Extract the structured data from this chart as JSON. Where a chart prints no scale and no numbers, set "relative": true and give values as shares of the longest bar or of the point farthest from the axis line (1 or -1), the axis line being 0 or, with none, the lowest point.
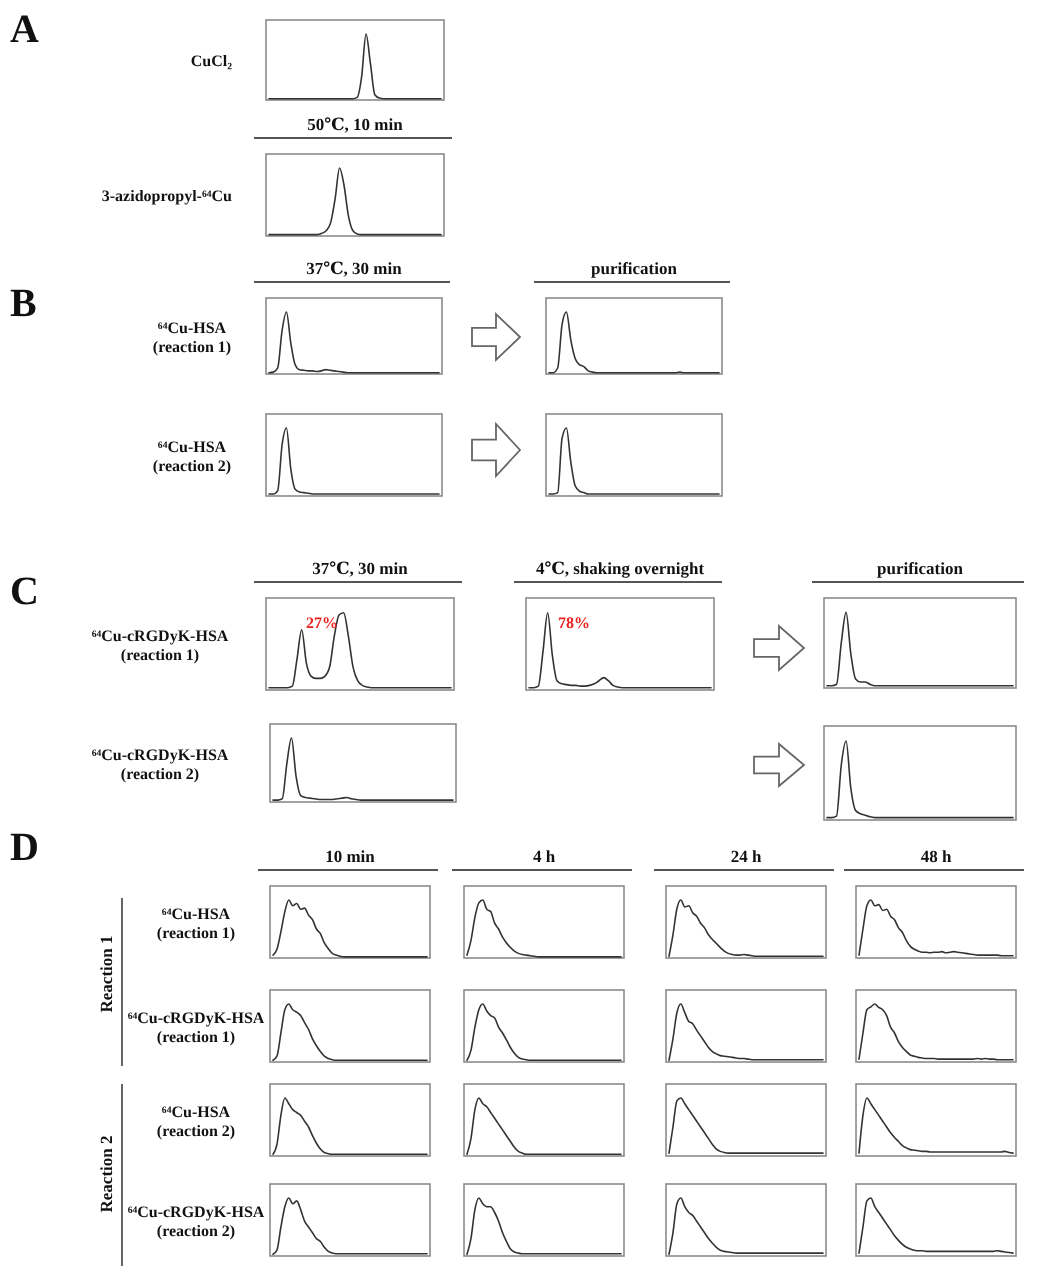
{
  "chart_data": [
    {
      "type": "line",
      "relative": true,
      "ylabel": "CuCl₂",
      "annotations": [
        "A"
      ],
      "color": "#333333",
      "categories": [
        null,
        null,
        null,
        null,
        null,
        null,
        null,
        null,
        null,
        null,
        null,
        null,
        null,
        null,
        null,
        null,
        null,
        null,
        null,
        null,
        null,
        null,
        null,
        null,
        null,
        null,
        null,
        null,
        null,
        null,
        null,
        null,
        null,
        null,
        null,
        null,
        null,
        null,
        null,
        null
      ],
      "values": [
        0.02,
        0.02,
        0.02,
        0.02,
        0.02,
        0.02,
        0.02,
        0.02,
        0.02,
        0.02,
        0.02,
        0.02,
        0.02,
        0.02,
        0.02,
        0.02,
        0.02,
        0.02,
        0.02,
        0.02,
        0.04,
        0.35,
        1,
        0.55,
        0.08,
        0.03,
        0.02,
        0.02,
        0.02,
        0.02,
        0.02,
        0.02,
        0.02,
        0.02,
        0.02,
        0.02,
        0.02,
        0.02,
        0.02,
        0.02
      ]
    },
    {
      "type": "line",
      "relative": true,
      "title": "50℃, 10 min",
      "ylabel": "3-azidopropyl-⁶⁴Cu",
      "color": "#333333",
      "categories": [
        null,
        null,
        null,
        null,
        null,
        null,
        null,
        null,
        null,
        null,
        null,
        null,
        null,
        null,
        null,
        null,
        null,
        null,
        null,
        null,
        null,
        null,
        null,
        null,
        null,
        null,
        null,
        null,
        null,
        null,
        null,
        null,
        null,
        null,
        null,
        null,
        null,
        null,
        null,
        null
      ],
      "values": [
        0.02,
        0.02,
        0.02,
        0.02,
        0.02,
        0.02,
        0.02,
        0.02,
        0.02,
        0.02,
        0.02,
        0.02,
        0.04,
        0.08,
        0.2,
        0.55,
        1,
        0.75,
        0.3,
        0.08,
        0.03,
        0.02,
        0.02,
        0.02,
        0.02,
        0.02,
        0.02,
        0.02,
        0.02,
        0.02,
        0.02,
        0.02,
        0.02,
        0.02,
        0.02,
        0.02,
        0.02,
        0.02,
        0.02,
        0.02
      ]
    },
    {
      "type": "line",
      "relative": true,
      "title": "37℃, 30 min",
      "ylabel": "⁶⁴Cu-HSA\n(reaction 1)",
      "annotations": [
        "B"
      ],
      "color": "#333333",
      "categories": [
        null,
        null,
        null,
        null,
        null,
        null,
        null,
        null,
        null,
        null,
        null,
        null,
        null,
        null,
        null,
        null,
        null,
        null,
        null,
        null,
        null,
        null,
        null,
        null,
        null,
        null,
        null,
        null,
        null,
        null,
        null,
        null,
        null,
        null,
        null,
        null,
        null,
        null,
        null,
        null
      ],
      "values": [
        0.02,
        0.03,
        0.1,
        0.7,
        1,
        0.5,
        0.15,
        0.07,
        0.06,
        0.05,
        0.05,
        0.04,
        0.05,
        0.07,
        0.06,
        0.05,
        0.04,
        0.03,
        0.02,
        0.02,
        0.02,
        0.02,
        0.02,
        0.02,
        0.02,
        0.02,
        0.02,
        0.02,
        0.02,
        0.02,
        0.02,
        0.02,
        0.02,
        0.02,
        0.02,
        0.02,
        0.02,
        0.02,
        0.02,
        0.02
      ]
    },
    {
      "type": "line",
      "relative": true,
      "title": "purification",
      "color": "#333333",
      "categories": [
        null,
        null,
        null,
        null,
        null,
        null,
        null,
        null,
        null,
        null,
        null,
        null,
        null,
        null,
        null,
        null,
        null,
        null,
        null,
        null,
        null,
        null,
        null,
        null,
        null,
        null,
        null,
        null,
        null,
        null,
        null,
        null,
        null,
        null,
        null,
        null,
        null,
        null,
        null,
        null
      ],
      "values": [
        0.02,
        0.02,
        0.1,
        0.8,
        1,
        0.55,
        0.25,
        0.15,
        0.12,
        0.05,
        0.03,
        0.02,
        0.02,
        0.02,
        0.02,
        0.02,
        0.02,
        0.02,
        0.02,
        0.02,
        0.02,
        0.02,
        0.02,
        0.02,
        0.02,
        0.02,
        0.02,
        0.02,
        0.02,
        0.02,
        0.03,
        0.02,
        0.02,
        0.02,
        0.02,
        0.02,
        0.02,
        0.02,
        0.02,
        0.02
      ]
    },
    {
      "type": "line",
      "relative": true,
      "ylabel": "⁶⁴Cu-HSA\n(reaction 2)",
      "color": "#333333",
      "categories": [
        null,
        null,
        null,
        null,
        null,
        null,
        null,
        null,
        null,
        null,
        null,
        null,
        null,
        null,
        null,
        null,
        null,
        null,
        null,
        null,
        null,
        null,
        null,
        null,
        null,
        null,
        null,
        null,
        null,
        null,
        null,
        null,
        null,
        null,
        null,
        null,
        null,
        null,
        null,
        null
      ],
      "values": [
        0.03,
        0.03,
        0.08,
        0.75,
        1,
        0.4,
        0.1,
        0.06,
        0.05,
        0.04,
        0.03,
        0.03,
        0.03,
        0.03,
        0.03,
        0.03,
        0.03,
        0.03,
        0.03,
        0.03,
        0.03,
        0.03,
        0.03,
        0.03,
        0.03,
        0.03,
        0.03,
        0.03,
        0.03,
        0.03,
        0.03,
        0.03,
        0.03,
        0.03,
        0.03,
        0.03,
        0.03,
        0.03,
        0.03,
        0.03
      ]
    },
    {
      "type": "line",
      "relative": true,
      "color": "#333333",
      "categories": [
        null,
        null,
        null,
        null,
        null,
        null,
        null,
        null,
        null,
        null,
        null,
        null,
        null,
        null,
        null,
        null,
        null,
        null,
        null,
        null,
        null,
        null,
        null,
        null,
        null,
        null,
        null,
        null,
        null,
        null,
        null,
        null,
        null,
        null,
        null,
        null,
        null,
        null,
        null,
        null
      ],
      "values": [
        0.03,
        0.03,
        0.05,
        0.85,
        1,
        0.5,
        0.15,
        0.07,
        0.05,
        0.03,
        0.03,
        0.03,
        0.03,
        0.03,
        0.03,
        0.03,
        0.03,
        0.03,
        0.03,
        0.03,
        0.03,
        0.03,
        0.03,
        0.03,
        0.03,
        0.03,
        0.03,
        0.03,
        0.03,
        0.03,
        0.03,
        0.03,
        0.03,
        0.03,
        0.03,
        0.03,
        0.03,
        0.03,
        0.03,
        0.03
      ]
    },
    {
      "type": "line",
      "relative": true,
      "title": "37℃, 30 min",
      "ylabel": "⁶⁴Cu-cRGDyK-HSA\n(reaction 1)",
      "annotations": [
        "C",
        "27%"
      ],
      "color": "#333333",
      "categories": [
        null,
        null,
        null,
        null,
        null,
        null,
        null,
        null,
        null,
        null,
        null,
        null,
        null,
        null,
        null,
        null,
        null,
        null,
        null,
        null,
        null,
        null,
        null,
        null,
        null,
        null,
        null,
        null,
        null,
        null,
        null,
        null,
        null,
        null,
        null,
        null,
        null,
        null,
        null,
        null
      ],
      "values": [
        0.03,
        0.03,
        0.03,
        0.03,
        0.03,
        0.05,
        0.4,
        0.78,
        0.35,
        0.18,
        0.15,
        0.15,
        0.18,
        0.3,
        0.7,
        0.97,
        1,
        0.7,
        0.3,
        0.12,
        0.06,
        0.04,
        0.03,
        0.03,
        0.03,
        0.03,
        0.03,
        0.03,
        0.03,
        0.03,
        0.03,
        0.03,
        0.03,
        0.03,
        0.03,
        0.03,
        0.03,
        0.03,
        0.03,
        0.03
      ]
    },
    {
      "type": "line",
      "relative": true,
      "title": "4℃, shaking overnight",
      "annotations": [
        "78%"
      ],
      "color": "#333333",
      "categories": [
        null,
        null,
        null,
        null,
        null,
        null,
        null,
        null,
        null,
        null,
        null,
        null,
        null,
        null,
        null,
        null,
        null,
        null,
        null,
        null,
        null,
        null,
        null,
        null,
        null,
        null,
        null,
        null,
        null,
        null,
        null,
        null,
        null,
        null,
        null,
        null,
        null,
        null,
        null,
        null
      ],
      "values": [
        0.03,
        0.03,
        0.05,
        0.5,
        1,
        0.45,
        0.12,
        0.08,
        0.07,
        0.06,
        0.06,
        0.05,
        0.05,
        0.06,
        0.08,
        0.12,
        0.16,
        0.12,
        0.06,
        0.04,
        0.03,
        0.03,
        0.03,
        0.03,
        0.03,
        0.03,
        0.03,
        0.03,
        0.03,
        0.03,
        0.03,
        0.03,
        0.03,
        0.03,
        0.03,
        0.03,
        0.03,
        0.03,
        0.03,
        0.03
      ]
    },
    {
      "type": "line",
      "relative": true,
      "title": "purification",
      "color": "#333333",
      "categories": [
        null,
        null,
        null,
        null,
        null,
        null,
        null,
        null,
        null,
        null,
        null,
        null,
        null,
        null,
        null,
        null,
        null,
        null,
        null,
        null,
        null,
        null,
        null,
        null,
        null,
        null,
        null,
        null,
        null,
        null,
        null,
        null,
        null,
        null,
        null,
        null,
        null,
        null,
        null,
        null
      ],
      "values": [
        0.03,
        0.03,
        0.05,
        0.6,
        1,
        0.45,
        0.12,
        0.08,
        0.08,
        0.05,
        0.03,
        0.03,
        0.03,
        0.03,
        0.03,
        0.03,
        0.03,
        0.03,
        0.03,
        0.03,
        0.03,
        0.03,
        0.03,
        0.03,
        0.03,
        0.03,
        0.03,
        0.03,
        0.03,
        0.03,
        0.03,
        0.03,
        0.03,
        0.03,
        0.03,
        0.03,
        0.03,
        0.03,
        0.03,
        0.03
      ]
    },
    {
      "type": "line",
      "relative": true,
      "ylabel": "⁶⁴Cu-cRGDyK-HSA\n(reaction 2)",
      "color": "#333333",
      "categories": [
        null,
        null,
        null,
        null,
        null,
        null,
        null,
        null,
        null,
        null,
        null,
        null,
        null,
        null,
        null,
        null,
        null,
        null,
        null,
        null,
        null,
        null,
        null,
        null,
        null,
        null,
        null,
        null,
        null,
        null,
        null,
        null,
        null,
        null,
        null,
        null,
        null,
        null,
        null,
        null
      ],
      "values": [
        0.03,
        0.03,
        0.05,
        0.6,
        1,
        0.4,
        0.1,
        0.07,
        0.06,
        0.05,
        0.04,
        0.04,
        0.04,
        0.04,
        0.05,
        0.06,
        0.07,
        0.05,
        0.04,
        0.03,
        0.03,
        0.03,
        0.03,
        0.03,
        0.03,
        0.03,
        0.03,
        0.03,
        0.03,
        0.03,
        0.03,
        0.03,
        0.03,
        0.03,
        0.03,
        0.03,
        0.03,
        0.03,
        0.03,
        0.03
      ]
    },
    {
      "type": "line",
      "relative": true,
      "color": "#333333",
      "categories": [
        null,
        null,
        null,
        null,
        null,
        null,
        null,
        null,
        null,
        null,
        null,
        null,
        null,
        null,
        null,
        null,
        null,
        null,
        null,
        null,
        null,
        null,
        null,
        null,
        null,
        null,
        null,
        null,
        null,
        null,
        null,
        null,
        null,
        null,
        null,
        null,
        null,
        null,
        null,
        null
      ],
      "values": [
        0.03,
        0.03,
        0.05,
        0.7,
        1,
        0.4,
        0.12,
        0.08,
        0.06,
        0.04,
        0.03,
        0.03,
        0.03,
        0.03,
        0.03,
        0.03,
        0.03,
        0.03,
        0.03,
        0.03,
        0.03,
        0.03,
        0.03,
        0.03,
        0.03,
        0.03,
        0.03,
        0.03,
        0.03,
        0.03,
        0.03,
        0.03,
        0.03,
        0.03,
        0.03,
        0.03,
        0.03,
        0.03,
        0.03,
        0.03
      ]
    },
    {
      "type": "line",
      "relative": true,
      "title": "10 min",
      "ylabel": "⁶⁴Cu-HSA\n(reaction 1)",
      "annotations": [
        "D",
        "Reaction 1"
      ],
      "color": "#333333",
      "categories": [
        null,
        null,
        null,
        null,
        null,
        null,
        null,
        null,
        null,
        null,
        null,
        null,
        null,
        null,
        null,
        null,
        null,
        null,
        null,
        null,
        null,
        null,
        null,
        null,
        null,
        null,
        null,
        null,
        null,
        null,
        null,
        null,
        null,
        null,
        null,
        null,
        null,
        null,
        null,
        null
      ],
      "values": [
        0.05,
        0.15,
        0.45,
        0.8,
        1,
        0.9,
        0.94,
        0.84,
        0.86,
        0.74,
        0.66,
        0.5,
        0.42,
        0.26,
        0.16,
        0.08,
        0.05,
        0.03,
        0.02,
        0.02,
        0.02,
        0.02,
        0.02,
        0.02,
        0.02,
        0.02,
        0.02,
        0.02,
        0.02,
        0.02,
        0.02,
        0.02,
        0.02,
        0.02,
        0.02,
        0.02,
        0.02,
        0.02,
        0.02,
        0.02
      ]
    },
    {
      "type": "line",
      "relative": true,
      "title": "4 h",
      "color": "#333333",
      "categories": [
        null,
        null,
        null,
        null,
        null,
        null,
        null,
        null,
        null,
        null,
        null,
        null,
        null,
        null,
        null,
        null,
        null,
        null,
        null,
        null,
        null,
        null,
        null,
        null,
        null,
        null,
        null,
        null,
        null,
        null,
        null,
        null,
        null,
        null,
        null,
        null,
        null,
        null,
        null,
        null
      ],
      "values": [
        0.05,
        0.3,
        0.7,
        0.95,
        1,
        0.84,
        0.8,
        0.6,
        0.5,
        0.36,
        0.26,
        0.18,
        0.12,
        0.08,
        0.06,
        0.05,
        0.04,
        0.03,
        0.02,
        0.02,
        0.02,
        0.02,
        0.02,
        0.02,
        0.02,
        0.02,
        0.02,
        0.02,
        0.02,
        0.02,
        0.02,
        0.02,
        0.02,
        0.02,
        0.02,
        0.02,
        0.02,
        0.02,
        0.02,
        0.02
      ]
    },
    {
      "type": "line",
      "relative": true,
      "title": "24 h",
      "color": "#333333",
      "categories": [
        null,
        null,
        null,
        null,
        null,
        null,
        null,
        null,
        null,
        null,
        null,
        null,
        null,
        null,
        null,
        null,
        null,
        null,
        null,
        null,
        null,
        null,
        null,
        null,
        null,
        null,
        null,
        null,
        null,
        null,
        null,
        null,
        null,
        null,
        null,
        null,
        null,
        null,
        null,
        null
      ],
      "values": [
        0.03,
        0.4,
        0.85,
        1,
        0.88,
        0.9,
        0.78,
        0.72,
        0.6,
        0.52,
        0.4,
        0.32,
        0.25,
        0.18,
        0.12,
        0.08,
        0.06,
        0.05,
        0.05,
        0.06,
        0.05,
        0.04,
        0.03,
        0.03,
        0.03,
        0.03,
        0.03,
        0.03,
        0.03,
        0.03,
        0.03,
        0.03,
        0.03,
        0.03,
        0.03,
        0.03,
        0.03,
        0.03,
        0.03,
        0.03
      ]
    },
    {
      "type": "line",
      "relative": true,
      "title": "48 h",
      "color": "#333333",
      "categories": [
        null,
        null,
        null,
        null,
        null,
        null,
        null,
        null,
        null,
        null,
        null,
        null,
        null,
        null,
        null,
        null,
        null,
        null,
        null,
        null,
        null,
        null,
        null,
        null,
        null,
        null,
        null,
        null,
        null,
        null,
        null,
        null,
        null,
        null,
        null,
        null,
        null,
        null,
        null,
        null
      ],
      "values": [
        0.05,
        0.5,
        0.9,
        1,
        0.9,
        0.92,
        0.82,
        0.84,
        0.72,
        0.66,
        0.52,
        0.44,
        0.3,
        0.2,
        0.15,
        0.12,
        0.1,
        0.1,
        0.09,
        0.1,
        0.1,
        0.11,
        0.09,
        0.1,
        0.11,
        0.1,
        0.09,
        0.08,
        0.07,
        0.06,
        0.05,
        0.05,
        0.05,
        0.05,
        0.05,
        0.05,
        0.04,
        0.04,
        0.04,
        0.04
      ]
    },
    {
      "type": "line",
      "relative": true,
      "ylabel": "⁶⁴Cu-cRGDyK-HSA\n(reaction 1)",
      "color": "#333333",
      "categories": [
        null,
        null,
        null,
        null,
        null,
        null,
        null,
        null,
        null,
        null,
        null,
        null,
        null,
        null,
        null,
        null,
        null,
        null,
        null,
        null,
        null,
        null,
        null,
        null,
        null,
        null,
        null,
        null,
        null,
        null,
        null,
        null,
        null,
        null,
        null,
        null,
        null,
        null,
        null,
        null
      ],
      "values": [
        0.03,
        0.1,
        0.5,
        0.9,
        1,
        0.9,
        0.86,
        0.8,
        0.68,
        0.56,
        0.4,
        0.28,
        0.18,
        0.1,
        0.06,
        0.04,
        0.03,
        0.03,
        0.03,
        0.03,
        0.03,
        0.03,
        0.03,
        0.03,
        0.03,
        0.03,
        0.03,
        0.03,
        0.03,
        0.03,
        0.03,
        0.03,
        0.03,
        0.03,
        0.03,
        0.03,
        0.03,
        0.03,
        0.03,
        0.03
      ]
    },
    {
      "type": "line",
      "relative": true,
      "color": "#333333",
      "categories": [
        null,
        null,
        null,
        null,
        null,
        null,
        null,
        null,
        null,
        null,
        null,
        null,
        null,
        null,
        null,
        null,
        null,
        null,
        null,
        null,
        null,
        null,
        null,
        null,
        null,
        null,
        null,
        null,
        null,
        null,
        null,
        null,
        null,
        null,
        null,
        null,
        null,
        null,
        null,
        null
      ],
      "values": [
        0.03,
        0.2,
        0.6,
        0.9,
        1,
        0.88,
        0.8,
        0.76,
        0.6,
        0.5,
        0.38,
        0.25,
        0.15,
        0.08,
        0.05,
        0.04,
        0.03,
        0.03,
        0.03,
        0.03,
        0.03,
        0.03,
        0.03,
        0.03,
        0.03,
        0.03,
        0.03,
        0.03,
        0.03,
        0.03,
        0.03,
        0.03,
        0.03,
        0.03,
        0.03,
        0.03,
        0.03,
        0.03,
        0.03,
        0.03
      ]
    },
    {
      "type": "line",
      "relative": true,
      "color": "#333333",
      "categories": [
        null,
        null,
        null,
        null,
        null,
        null,
        null,
        null,
        null,
        null,
        null,
        null,
        null,
        null,
        null,
        null,
        null,
        null,
        null,
        null,
        null,
        null,
        null,
        null,
        null,
        null,
        null,
        null,
        null,
        null,
        null,
        null,
        null,
        null,
        null,
        null,
        null,
        null,
        null,
        null
      ],
      "values": [
        0.03,
        0.4,
        0.85,
        1,
        0.85,
        0.7,
        0.66,
        0.55,
        0.45,
        0.35,
        0.25,
        0.18,
        0.14,
        0.11,
        0.1,
        0.09,
        0.08,
        0.07,
        0.06,
        0.06,
        0.05,
        0.04,
        0.04,
        0.04,
        0.04,
        0.04,
        0.04,
        0.04,
        0.04,
        0.04,
        0.04,
        0.04,
        0.04,
        0.04,
        0.04,
        0.04,
        0.04,
        0.04,
        0.04,
        0.04
      ]
    },
    {
      "type": "line",
      "relative": true,
      "color": "#333333",
      "categories": [
        null,
        null,
        null,
        null,
        null,
        null,
        null,
        null,
        null,
        null,
        null,
        null,
        null,
        null,
        null,
        null,
        null,
        null,
        null,
        null,
        null,
        null,
        null,
        null,
        null,
        null,
        null,
        null,
        null,
        null,
        null,
        null,
        null,
        null,
        null,
        null,
        null,
        null,
        null,
        null
      ],
      "values": [
        0.05,
        0.5,
        0.9,
        0.95,
        1,
        0.94,
        0.9,
        0.8,
        0.6,
        0.5,
        0.35,
        0.25,
        0.18,
        0.12,
        0.1,
        0.08,
        0.07,
        0.06,
        0.06,
        0.06,
        0.05,
        0.05,
        0.05,
        0.05,
        0.05,
        0.05,
        0.05,
        0.05,
        0.05,
        0.05,
        0.06,
        0.05,
        0.06,
        0.05,
        0.05,
        0.04,
        0.04,
        0.04,
        0.04,
        0.04
      ]
    },
    {
      "type": "line",
      "relative": true,
      "ylabel": "⁶⁴Cu-HSA\n(reaction 2)",
      "annotations": [
        "Reaction 2"
      ],
      "color": "#333333",
      "categories": [
        null,
        null,
        null,
        null,
        null,
        null,
        null,
        null,
        null,
        null,
        null,
        null,
        null,
        null,
        null,
        null,
        null,
        null,
        null,
        null,
        null,
        null,
        null,
        null,
        null,
        null,
        null,
        null,
        null,
        null,
        null,
        null,
        null,
        null,
        null,
        null,
        null,
        null,
        null,
        null
      ],
      "values": [
        0.03,
        0.2,
        0.7,
        1,
        0.9,
        0.8,
        0.75,
        0.7,
        0.6,
        0.5,
        0.35,
        0.22,
        0.12,
        0.06,
        0.04,
        0.03,
        0.03,
        0.03,
        0.03,
        0.03,
        0.03,
        0.03,
        0.03,
        0.03,
        0.03,
        0.03,
        0.03,
        0.03,
        0.03,
        0.03,
        0.03,
        0.03,
        0.03,
        0.03,
        0.03,
        0.03,
        0.03,
        0.03,
        0.03,
        0.03
      ]
    },
    {
      "type": "line",
      "relative": true,
      "color": "#333333",
      "categories": [
        null,
        null,
        null,
        null,
        null,
        null,
        null,
        null,
        null,
        null,
        null,
        null,
        null,
        null,
        null,
        null,
        null,
        null,
        null,
        null,
        null,
        null,
        null,
        null,
        null,
        null,
        null,
        null,
        null,
        null,
        null,
        null,
        null,
        null,
        null,
        null,
        null,
        null,
        null,
        null
      ],
      "values": [
        0.03,
        0.3,
        0.8,
        1,
        0.9,
        0.85,
        0.75,
        0.65,
        0.55,
        0.45,
        0.35,
        0.25,
        0.15,
        0.08,
        0.05,
        0.03,
        0.03,
        0.03,
        0.03,
        0.03,
        0.03,
        0.03,
        0.03,
        0.03,
        0.03,
        0.03,
        0.03,
        0.03,
        0.03,
        0.03,
        0.03,
        0.03,
        0.03,
        0.03,
        0.03,
        0.03,
        0.03,
        0.03,
        0.03,
        0.03
      ]
    },
    {
      "type": "line",
      "relative": true,
      "color": "#333333",
      "categories": [
        null,
        null,
        null,
        null,
        null,
        null,
        null,
        null,
        null,
        null,
        null,
        null,
        null,
        null,
        null,
        null,
        null,
        null,
        null,
        null,
        null,
        null,
        null,
        null,
        null,
        null,
        null,
        null,
        null,
        null,
        null,
        null,
        null,
        null,
        null,
        null,
        null,
        null,
        null,
        null
      ],
      "values": [
        0.05,
        0.5,
        0.95,
        1,
        0.9,
        0.8,
        0.7,
        0.6,
        0.5,
        0.4,
        0.3,
        0.2,
        0.12,
        0.08,
        0.06,
        0.05,
        0.05,
        0.05,
        0.05,
        0.05,
        0.05,
        0.05,
        0.05,
        0.05,
        0.05,
        0.05,
        0.05,
        0.05,
        0.05,
        0.05,
        0.05,
        0.05,
        0.05,
        0.05,
        0.05,
        0.05,
        0.05,
        0.05,
        0.05,
        0.05
      ]
    },
    {
      "type": "line",
      "relative": true,
      "color": "#333333",
      "categories": [
        null,
        null,
        null,
        null,
        null,
        null,
        null,
        null,
        null,
        null,
        null,
        null,
        null,
        null,
        null,
        null,
        null,
        null,
        null,
        null,
        null,
        null,
        null,
        null,
        null,
        null,
        null,
        null,
        null,
        null,
        null,
        null,
        null,
        null,
        null,
        null,
        null,
        null,
        null,
        null
      ],
      "values": [
        0.05,
        0.7,
        1,
        0.9,
        0.8,
        0.7,
        0.6,
        0.5,
        0.4,
        0.32,
        0.25,
        0.18,
        0.14,
        0.11,
        0.1,
        0.09,
        0.08,
        0.08,
        0.07,
        0.07,
        0.07,
        0.07,
        0.07,
        0.07,
        0.07,
        0.07,
        0.07,
        0.07,
        0.07,
        0.07,
        0.07,
        0.07,
        0.07,
        0.07,
        0.07,
        0.07,
        0.07,
        0.08,
        0.06,
        0.05
      ]
    },
    {
      "type": "line",
      "relative": true,
      "ylabel": "⁶⁴Cu-cRGDyK-HSA\n(reaction 2)",
      "color": "#333333",
      "categories": [
        null,
        null,
        null,
        null,
        null,
        null,
        null,
        null,
        null,
        null,
        null,
        null,
        null,
        null,
        null,
        null,
        null,
        null,
        null,
        null,
        null,
        null,
        null,
        null,
        null,
        null,
        null,
        null,
        null,
        null,
        null,
        null,
        null,
        null,
        null,
        null,
        null,
        null,
        null,
        null
      ],
      "values": [
        0.03,
        0.1,
        0.5,
        0.85,
        1,
        0.9,
        0.95,
        0.8,
        0.6,
        0.5,
        0.4,
        0.3,
        0.25,
        0.15,
        0.08,
        0.05,
        0.04,
        0.04,
        0.04,
        0.04,
        0.04,
        0.04,
        0.04,
        0.04,
        0.04,
        0.04,
        0.04,
        0.04,
        0.04,
        0.04,
        0.04,
        0.04,
        0.04,
        0.04,
        0.04,
        0.04,
        0.04,
        0.04,
        0.04,
        0.04
      ]
    },
    {
      "type": "line",
      "relative": true,
      "color": "#333333",
      "categories": [
        null,
        null,
        null,
        null,
        null,
        null,
        null,
        null,
        null,
        null,
        null,
        null,
        null,
        null,
        null,
        null,
        null,
        null,
        null,
        null,
        null,
        null,
        null,
        null,
        null,
        null,
        null,
        null,
        null,
        null,
        null,
        null,
        null,
        null,
        null,
        null,
        null,
        null,
        null,
        null
      ],
      "values": [
        0.03,
        0.3,
        0.8,
        1,
        0.9,
        0.85,
        0.85,
        0.75,
        0.6,
        0.4,
        0.25,
        0.12,
        0.07,
        0.05,
        0.04,
        0.04,
        0.04,
        0.04,
        0.04,
        0.04,
        0.04,
        0.04,
        0.04,
        0.04,
        0.04,
        0.04,
        0.04,
        0.04,
        0.04,
        0.04,
        0.04,
        0.04,
        0.04,
        0.04,
        0.04,
        0.04,
        0.04,
        0.04,
        0.04,
        0.04
      ]
    },
    {
      "type": "line",
      "relative": true,
      "color": "#333333",
      "categories": [
        null,
        null,
        null,
        null,
        null,
        null,
        null,
        null,
        null,
        null,
        null,
        null,
        null,
        null,
        null,
        null,
        null,
        null,
        null,
        null,
        null,
        null,
        null,
        null,
        null,
        null,
        null,
        null,
        null,
        null,
        null,
        null,
        null,
        null,
        null,
        null,
        null,
        null,
        null,
        null
      ],
      "values": [
        0.03,
        0.4,
        0.9,
        1,
        0.85,
        0.75,
        0.7,
        0.6,
        0.5,
        0.4,
        0.3,
        0.22,
        0.15,
        0.1,
        0.08,
        0.07,
        0.06,
        0.05,
        0.05,
        0.05,
        0.05,
        0.05,
        0.05,
        0.05,
        0.05,
        0.05,
        0.05,
        0.05,
        0.05,
        0.05,
        0.05,
        0.05,
        0.05,
        0.05,
        0.05,
        0.05,
        0.05,
        0.05,
        0.05,
        0.05
      ]
    },
    {
      "type": "line",
      "relative": true,
      "color": "#333333",
      "categories": [
        null,
        null,
        null,
        null,
        null,
        null,
        null,
        null,
        null,
        null,
        null,
        null,
        null,
        null,
        null,
        null,
        null,
        null,
        null,
        null,
        null,
        null,
        null,
        null,
        null,
        null,
        null,
        null,
        null,
        null,
        null,
        null,
        null,
        null,
        null,
        null,
        null,
        null,
        null,
        null
      ],
      "values": [
        0.05,
        0.5,
        0.95,
        1,
        0.85,
        0.75,
        0.65,
        0.55,
        0.45,
        0.35,
        0.27,
        0.2,
        0.15,
        0.12,
        0.1,
        0.09,
        0.09,
        0.08,
        0.08,
        0.08,
        0.08,
        0.08,
        0.08,
        0.08,
        0.08,
        0.08,
        0.08,
        0.08,
        0.08,
        0.08,
        0.08,
        0.08,
        0.08,
        0.08,
        0.08,
        0.09,
        0.08,
        0.07,
        0.06,
        0.05
      ]
    }
  ]
}
